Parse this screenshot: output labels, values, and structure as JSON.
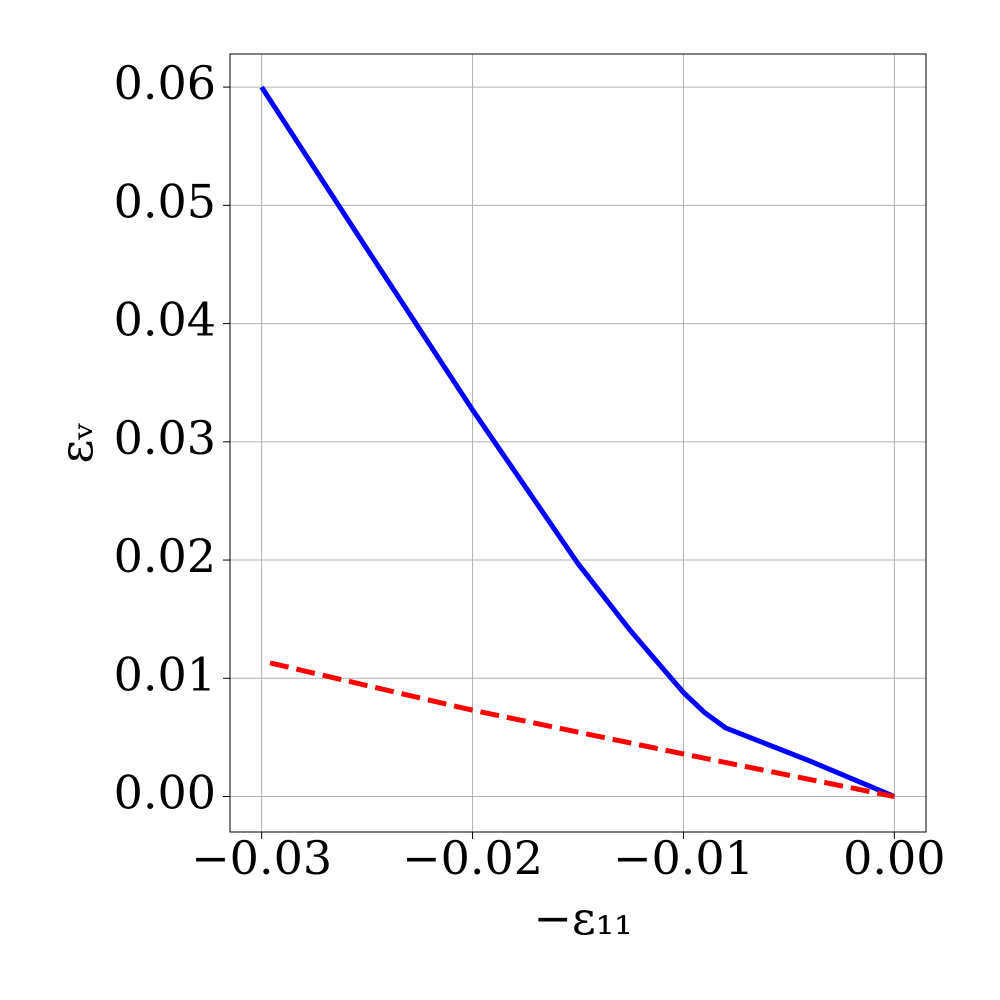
{
  "chart_data": {
    "type": "line",
    "x_label": "−ε₁₁",
    "y_label": "εᵥ",
    "xlim": [
      -0.0315,
      0.0015
    ],
    "ylim": [
      -0.003,
      0.0628
    ],
    "xticks": [
      {
        "value": -0.03,
        "label": "−0.03"
      },
      {
        "value": -0.02,
        "label": "−0.02"
      },
      {
        "value": -0.01,
        "label": "−0.01"
      },
      {
        "value": 0,
        "label": "0.00"
      }
    ],
    "yticks": [
      {
        "value": 0,
        "label": "0.00"
      },
      0.01,
      0.02,
      0.03,
      0.04,
      0.05,
      0.06
    ],
    "grid": true,
    "series": [
      {
        "color": "#0000ff",
        "dash": false,
        "x": [
          -0.03,
          -0.025,
          -0.02,
          -0.015,
          -0.0125,
          -0.01,
          -0.009,
          -0.008,
          -0.007,
          -0.006,
          -0.004,
          -0.002,
          0
        ],
        "values": [
          0.06,
          0.0463,
          0.0327,
          0.0197,
          0.014,
          0.0088,
          0.0071,
          0.0058,
          0.0051,
          0.0044,
          0.003,
          0.0015,
          0
        ]
      },
      {
        "color": "#ff0000",
        "dash": true,
        "x": [
          -0.0296,
          -0.02,
          -0.01,
          -0.005,
          0
        ],
        "values": [
          0.0113,
          0.0073,
          0.0036,
          0.0018,
          0
        ]
      }
    ]
  }
}
